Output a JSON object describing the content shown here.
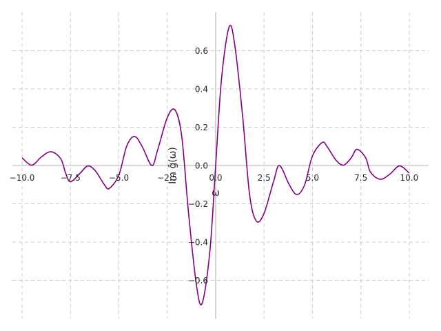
{
  "chart_data": {
    "type": "line",
    "title": "",
    "xlabel": "ω",
    "ylabel": "Im ĝ(ω)",
    "xlim": [
      -10.5,
      11.0
    ],
    "ylim": [
      -0.8,
      0.8
    ],
    "x_ticks": [
      -10.0,
      -7.5,
      -5.0,
      -2.5,
      0.0,
      2.5,
      5.0,
      7.5,
      10.0
    ],
    "x_tick_labels": [
      "−10.0",
      "−7.5",
      "−5.0",
      "−2.5",
      "0.0",
      "2.5",
      "5.0",
      "7.5",
      "10.0"
    ],
    "y_ticks": [
      -0.6,
      -0.4,
      -0.2,
      0.0,
      0.2,
      0.4,
      0.6
    ],
    "y_tick_labels": [
      "−0.6",
      "−0.4",
      "−0.2",
      "0.0",
      "0.2",
      "0.4",
      "0.6"
    ],
    "grid": true,
    "spines_at_origin": true,
    "series": [
      {
        "name": "",
        "color": "#800080",
        "points": [
          [
            -10.0,
            0.04
          ],
          [
            -9.5,
            0.002
          ],
          [
            -9.0,
            0.045
          ],
          [
            -8.5,
            0.072
          ],
          [
            -8.0,
            0.035
          ],
          [
            -7.75,
            -0.04
          ],
          [
            -7.5,
            -0.085
          ],
          [
            -7.0,
            -0.04
          ],
          [
            -6.6,
            -0.002
          ],
          [
            -6.2,
            -0.03
          ],
          [
            -5.75,
            -0.1
          ],
          [
            -5.5,
            -0.12
          ],
          [
            -5.0,
            -0.05
          ],
          [
            -4.6,
            0.1
          ],
          [
            -4.2,
            0.152
          ],
          [
            -3.8,
            0.1
          ],
          [
            -3.3,
            0.0
          ],
          [
            -3.0,
            0.08
          ],
          [
            -2.5,
            0.25
          ],
          [
            -2.1,
            0.29
          ],
          [
            -1.75,
            0.15
          ],
          [
            -1.4,
            -0.25
          ],
          [
            -1.0,
            -0.62
          ],
          [
            -0.7,
            -0.72
          ],
          [
            -0.3,
            -0.45
          ],
          [
            0.0,
            0.0
          ],
          [
            0.3,
            0.45
          ],
          [
            0.7,
            0.725
          ],
          [
            1.0,
            0.62
          ],
          [
            1.4,
            0.25
          ],
          [
            1.75,
            -0.15
          ],
          [
            2.1,
            -0.29
          ],
          [
            2.5,
            -0.25
          ],
          [
            3.0,
            -0.08
          ],
          [
            3.3,
            0.0
          ],
          [
            3.8,
            -0.1
          ],
          [
            4.2,
            -0.152
          ],
          [
            4.6,
            -0.1
          ],
          [
            5.0,
            0.05
          ],
          [
            5.5,
            0.12
          ],
          [
            5.75,
            0.1
          ],
          [
            6.2,
            0.03
          ],
          [
            6.6,
            0.002
          ],
          [
            7.0,
            0.04
          ],
          [
            7.3,
            0.085
          ],
          [
            7.75,
            0.04
          ],
          [
            8.0,
            -0.035
          ],
          [
            8.5,
            -0.072
          ],
          [
            9.0,
            -0.045
          ],
          [
            9.5,
            -0.002
          ],
          [
            10.0,
            -0.04
          ]
        ]
      }
    ]
  }
}
